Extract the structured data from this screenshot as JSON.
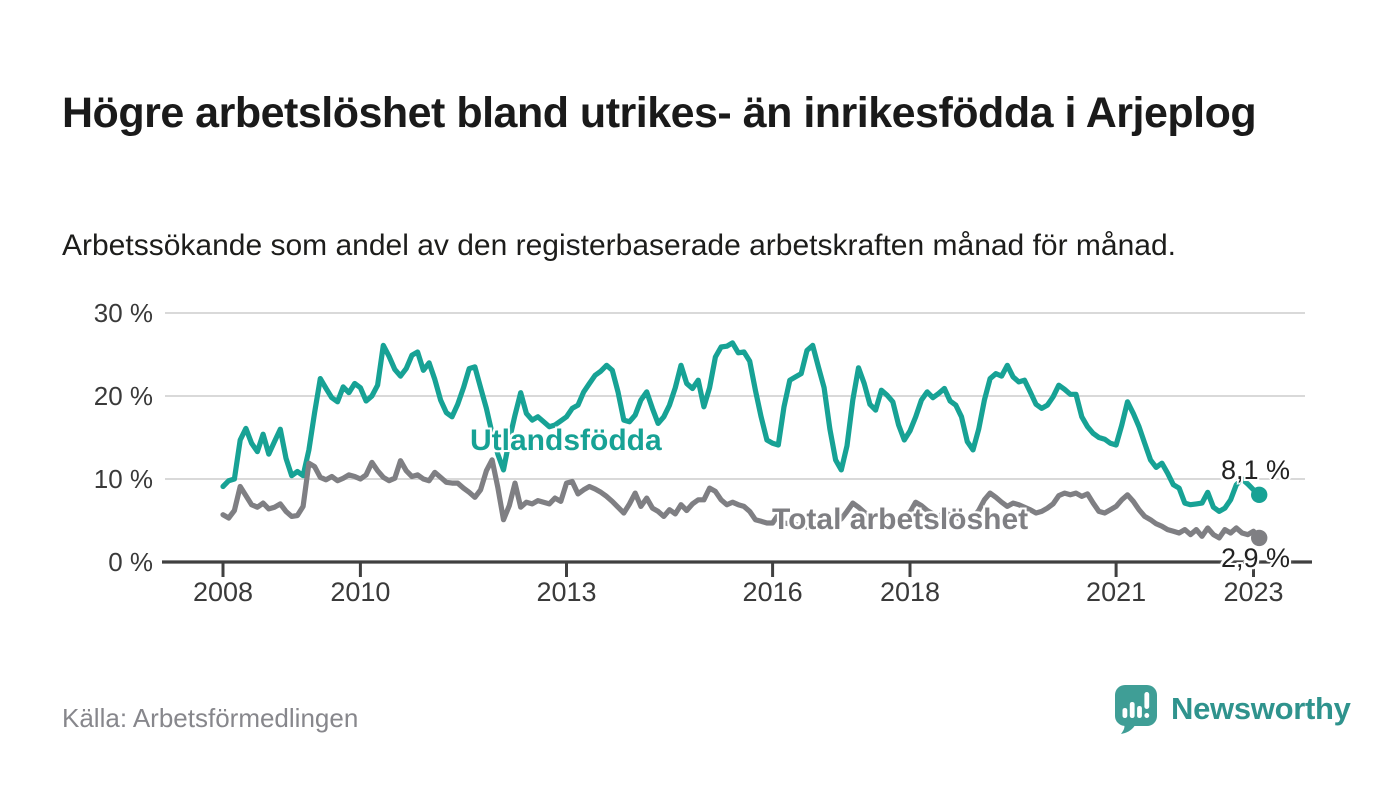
{
  "header": {
    "title": "Högre arbetslöshet bland utrikes- än inrikesfödda i Arjeplog",
    "subtitle": "Arbetssökande som andel av den registerbaserade arbetskraften månad för månad."
  },
  "footer": {
    "source": "Källa: Arbetsförmedlingen",
    "brand": "Newsworthy"
  },
  "colors": {
    "series_foreign_born": "#17a295",
    "series_total": "#7f7f83",
    "brand_teal": "#2f938d",
    "axis_text": "#3a3a3a",
    "gridline": "#d9d9d9",
    "axis_line": "#404040",
    "title_text": "#1a1a1a",
    "source_text": "#87878c"
  },
  "chart_data": {
    "type": "line",
    "unit": "%",
    "frequency": "monthly",
    "start": "2008-01",
    "end": "2023-02",
    "grid": true,
    "legend_position": "inline-labels",
    "y_axis": {
      "range": [
        0,
        30
      ],
      "ticks": [
        {
          "value": 0,
          "label": "0 %"
        },
        {
          "value": 10,
          "label": "10 %"
        },
        {
          "value": 20,
          "label": "20 %"
        },
        {
          "value": 30,
          "label": "30 %"
        }
      ]
    },
    "x_axis": {
      "ticks": [
        {
          "year": 2008,
          "label": "2008"
        },
        {
          "year": 2010,
          "label": "2010"
        },
        {
          "year": 2013,
          "label": "2013"
        },
        {
          "year": 2016,
          "label": "2016"
        },
        {
          "year": 2018,
          "label": "2018"
        },
        {
          "year": 2021,
          "label": "2021"
        },
        {
          "year": 2023,
          "label": "2023"
        }
      ]
    },
    "series": [
      {
        "name": "Utlandsfödda",
        "color": "#17a295",
        "end_label": "8,1 %",
        "latest_value": 8.1,
        "values": [
          9.1,
          9.8,
          10,
          14.7,
          16.1,
          14.3,
          13.3,
          15.4,
          13,
          14.5,
          16,
          12.5,
          10.4,
          10.9,
          10.4,
          13.5,
          18,
          22.1,
          20.9,
          19.8,
          19.3,
          21.1,
          20.4,
          21.5,
          21,
          19.4,
          20,
          21.3,
          26.1,
          24.8,
          23.2,
          22.4,
          23.3,
          24.9,
          25.3,
          23.1,
          24,
          22,
          19.5,
          18,
          17.5,
          19,
          21,
          23.3,
          23.5,
          21,
          18.5,
          15.5,
          13,
          11.1,
          14.7,
          17.7,
          20.4,
          17.9,
          17.1,
          17.5,
          16.9,
          16.3,
          16.5,
          17,
          17.5,
          18.5,
          18.9,
          20.5,
          21.5,
          22.5,
          23,
          23.7,
          23.1,
          20.5,
          17.1,
          16.9,
          17.7,
          19.5,
          20.5,
          18.5,
          16.7,
          17.5,
          18.9,
          21,
          23.7,
          21.5,
          20.9,
          21.9,
          18.7,
          21,
          24.7,
          25.9,
          26,
          26.4,
          25.2,
          25.3,
          24.2,
          20.7,
          17.5,
          14.7,
          14.3,
          14.1,
          18.7,
          21.9,
          22.3,
          22.7,
          25.5,
          26.1,
          23.5,
          21,
          16,
          12.3,
          11.1,
          14,
          19.5,
          23.4,
          21.5,
          19,
          18.3,
          20.7,
          20.1,
          19.3,
          16.5,
          14.7,
          15.8,
          17.5,
          19.5,
          20.5,
          19.8,
          20.3,
          20.9,
          19.4,
          18.9,
          17.5,
          14.5,
          13.5,
          16,
          19.5,
          22.1,
          22.7,
          22.4,
          23.7,
          22.3,
          21.7,
          21.9,
          20.5,
          19,
          18.5,
          18.9,
          19.9,
          21.3,
          20.8,
          20.2,
          20.2,
          17.5,
          16.3,
          15.5,
          15,
          14.8,
          14.3,
          14.1,
          16.5,
          19.3,
          17.9,
          16.3,
          14.3,
          12.3,
          11.4,
          11.9,
          10.7,
          9.3,
          8.9,
          7.1,
          6.9,
          7,
          7.1,
          8.4,
          6.6,
          6.1,
          6.5,
          7.5,
          9.3,
          10,
          9.4,
          8.7,
          8.1
        ]
      },
      {
        "name": "Total arbetslöshet",
        "color": "#7f7f83",
        "end_label": "2,9 %",
        "latest_value": 2.9,
        "values": [
          5.7,
          5.3,
          6.2,
          9.1,
          8,
          6.9,
          6.6,
          7.1,
          6.4,
          6.6,
          7,
          6.1,
          5.5,
          5.6,
          6.7,
          11.9,
          11.5,
          10.2,
          9.9,
          10.3,
          9.8,
          10.1,
          10.5,
          10.3,
          10,
          10.5,
          12,
          11,
          10.2,
          9.8,
          10.1,
          12.2,
          11,
          10.3,
          10.5,
          10,
          9.8,
          10.8,
          10.2,
          9.6,
          9.5,
          9.5,
          8.9,
          8.4,
          7.8,
          8.7,
          11,
          12.3,
          9,
          5.1,
          6.8,
          9.5,
          6.6,
          7.2,
          7,
          7.4,
          7.2,
          7,
          7.7,
          7.3,
          9.5,
          9.7,
          8.2,
          8.7,
          9.1,
          8.8,
          8.4,
          7.9,
          7.3,
          6.6,
          5.9,
          7,
          8.3,
          6.7,
          7.7,
          6.5,
          6.1,
          5.5,
          6.3,
          5.8,
          6.9,
          6.2,
          7,
          7.5,
          7.5,
          8.9,
          8.5,
          7.5,
          6.9,
          7.2,
          6.9,
          6.7,
          6.1,
          5.1,
          4.9,
          4.7,
          4.7,
          5.7,
          4.7,
          4.6,
          4.5,
          4.4,
          4.2,
          4.5,
          4.3,
          4.6,
          4.4,
          4.7,
          5.2,
          6.1,
          7.1,
          6.6,
          6,
          5.5,
          5.8,
          5.6,
          5.4,
          5.2,
          5,
          5.6,
          6,
          7.2,
          6.8,
          6.2,
          5.8,
          5.5,
          5.9,
          5.7,
          5.4,
          5.1,
          4.9,
          5.3,
          6.2,
          7.5,
          8.3,
          7.8,
          7.2,
          6.7,
          7.1,
          6.9,
          6.6,
          6.3,
          5.9,
          6.1,
          6.5,
          7,
          8,
          8.3,
          8.1,
          8.3,
          7.9,
          8.2,
          7.1,
          6.1,
          5.9,
          6.3,
          6.7,
          7.5,
          8.1,
          7.3,
          6.3,
          5.5,
          5.1,
          4.6,
          4.3,
          3.9,
          3.7,
          3.5,
          3.9,
          3.3,
          3.9,
          3.1,
          4.1,
          3.3,
          2.9,
          3.9,
          3.5,
          4.1,
          3.5,
          3.3,
          3.7,
          2.9
        ]
      }
    ]
  }
}
